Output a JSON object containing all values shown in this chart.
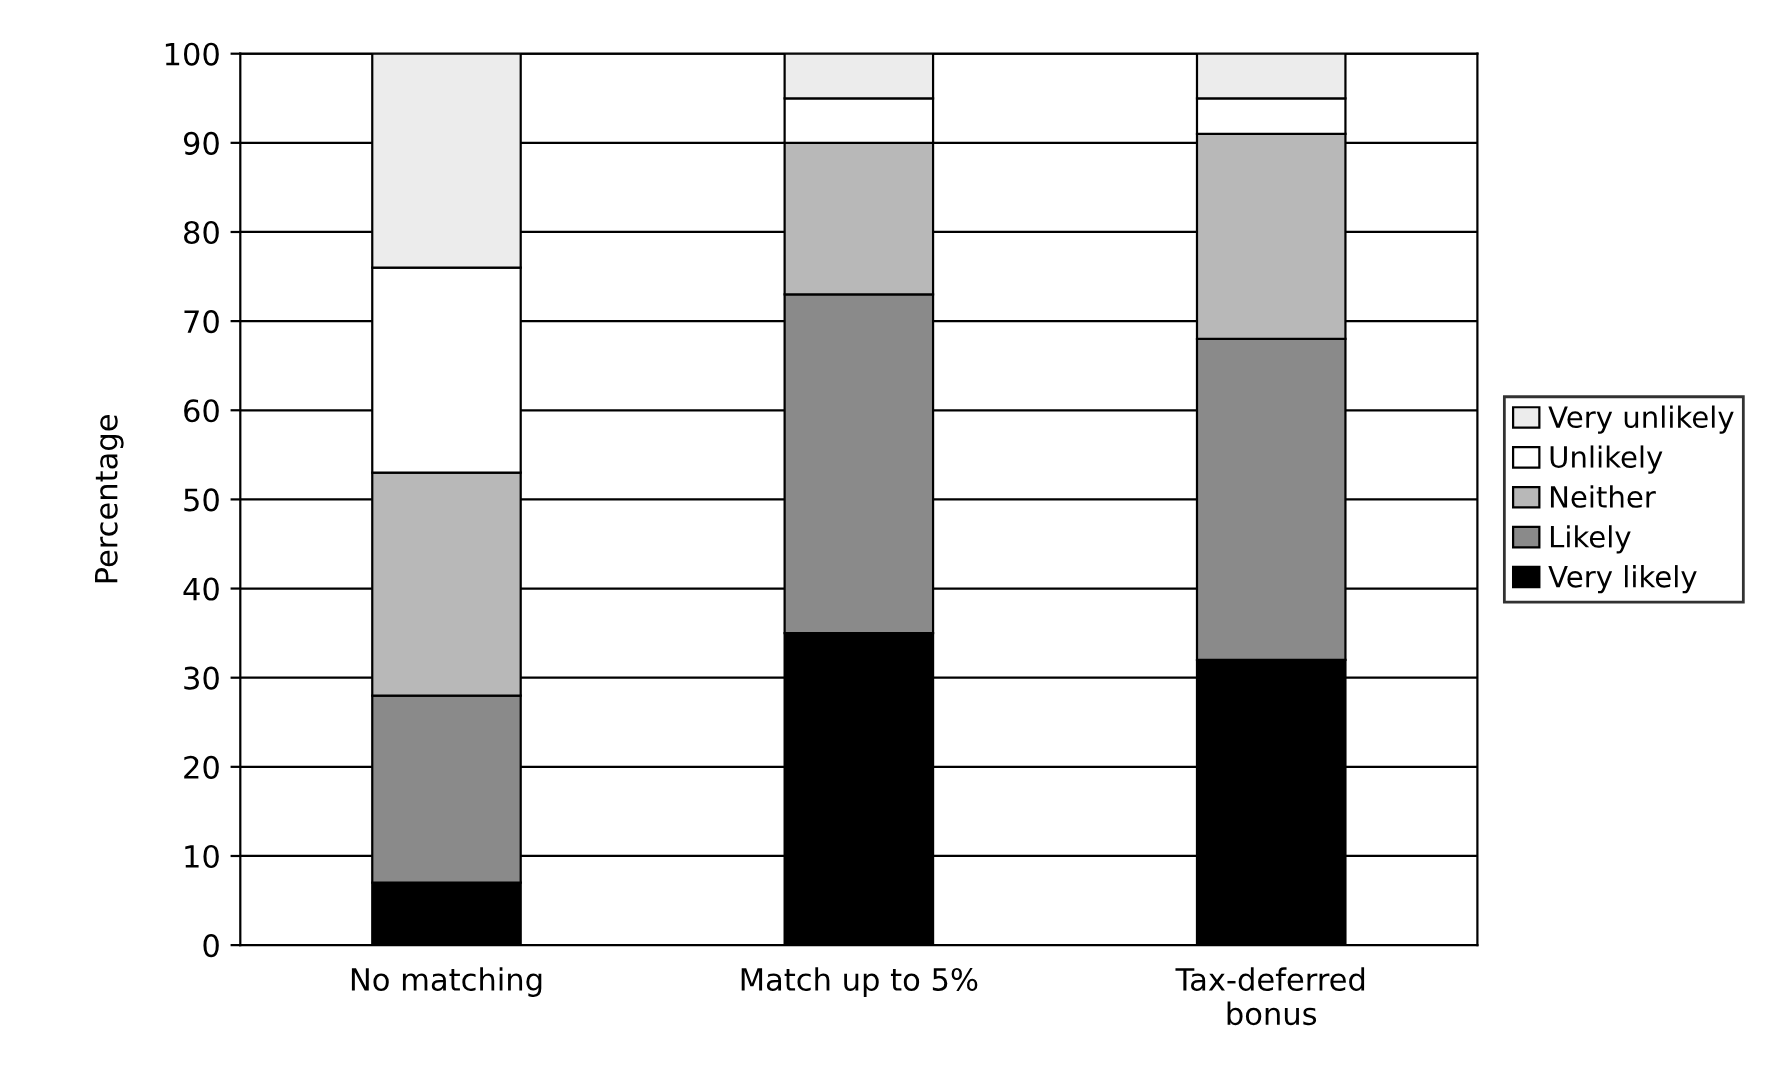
{
  "chart_data": {
    "type": "bar",
    "stacked": true,
    "ylabel": "Percentage",
    "categories": [
      "No matching",
      "Match up to 5%",
      "Tax-deferred\nbonus"
    ],
    "series": [
      {
        "name": "Very likely",
        "color": "#000000",
        "values": [
          7,
          35,
          32
        ]
      },
      {
        "name": "Likely",
        "color": "#8a8a8a",
        "values": [
          21,
          38,
          36
        ]
      },
      {
        "name": "Neither",
        "color": "#b8b8b8",
        "values": [
          25,
          17,
          23
        ]
      },
      {
        "name": "Unlikely",
        "color": "#ffffff",
        "values": [
          23,
          5,
          4
        ]
      },
      {
        "name": "Very unlikely",
        "color": "#ececec",
        "values": [
          24,
          5,
          5
        ]
      }
    ],
    "ylim": [
      0,
      100
    ],
    "yticks": [
      0,
      10,
      20,
      30,
      40,
      50,
      60,
      70,
      80,
      90,
      100
    ],
    "grid": "y",
    "legend": "right"
  }
}
